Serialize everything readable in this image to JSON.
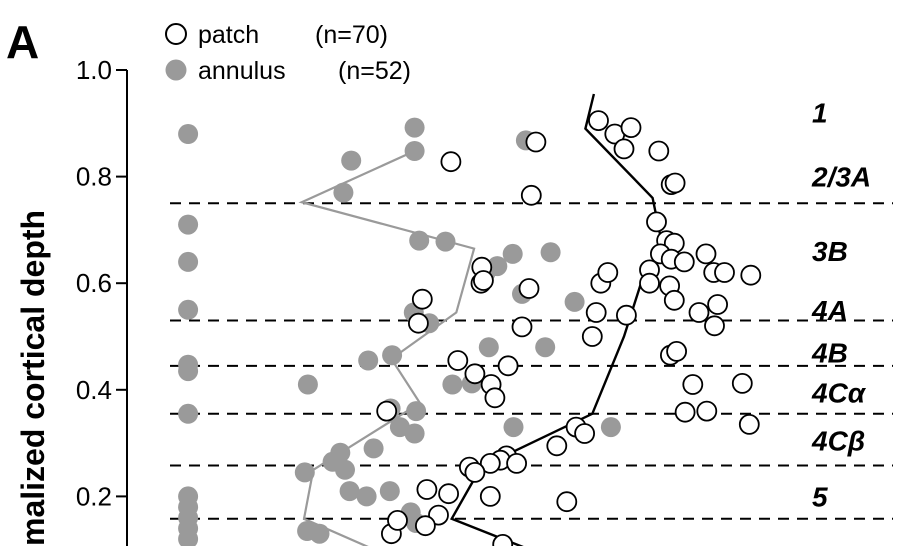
{
  "panel_label": "A",
  "legend": [
    {
      "label": "patch",
      "n": "(n=70)",
      "marker": "open-circle"
    },
    {
      "label": "annulus",
      "n": "(n=52)",
      "marker": "filled-circle"
    }
  ],
  "ylabel": "malized   cortical   depth",
  "colors": {
    "patch_stroke": "#000000",
    "annulus_fill": "#9a9a9a",
    "patch_curve": "#000000",
    "annulus_curve": "#9a9a9a",
    "boundary": "#000000"
  },
  "chart_data": {
    "type": "scatter",
    "ylim": [
      0.1,
      1.0
    ],
    "yticks": [
      {
        "value": 1.0,
        "label": "1.0"
      },
      {
        "value": 0.8,
        "label": "0.8"
      },
      {
        "value": 0.6,
        "label": "0.6"
      },
      {
        "value": 0.4,
        "label": "0.4"
      },
      {
        "value": 0.2,
        "label": "0.2"
      }
    ],
    "xaxis": "arbitrary horizontal spread (no labeled axis)",
    "xlim": [
      0,
      100
    ],
    "layer_boundaries": [
      0.75,
      0.53,
      0.445,
      0.355,
      0.258,
      0.158
    ],
    "layers": [
      {
        "label": "1",
        "y": 0.92
      },
      {
        "label": "2/3A",
        "y": 0.8
      },
      {
        "label": "3B",
        "y": 0.66
      },
      {
        "label": "4A",
        "y": 0.55
      },
      {
        "label": "4B",
        "y": 0.47
      },
      {
        "label": "4Cα",
        "y": 0.395
      },
      {
        "label": "4Cβ",
        "y": 0.305
      },
      {
        "label": "5",
        "y": 0.2
      }
    ],
    "series": [
      {
        "name": "patch",
        "marker": "open",
        "points": [
          [
            61.0,
            0.905
          ],
          [
            63.1,
            0.88
          ],
          [
            65.2,
            0.892
          ],
          [
            64.3,
            0.852
          ],
          [
            68.8,
            0.848
          ],
          [
            70.4,
            0.785
          ],
          [
            70.9,
            0.788
          ],
          [
            68.5,
            0.715
          ],
          [
            69.8,
            0.68
          ],
          [
            70.8,
            0.675
          ],
          [
            69.0,
            0.655
          ],
          [
            70.4,
            0.645
          ],
          [
            67.6,
            0.625
          ],
          [
            72.1,
            0.64
          ],
          [
            74.9,
            0.655
          ],
          [
            75.9,
            0.62
          ],
          [
            77.3,
            0.62
          ],
          [
            80.7,
            0.615
          ],
          [
            67.6,
            0.6
          ],
          [
            70.2,
            0.595
          ],
          [
            70.8,
            0.568
          ],
          [
            74.0,
            0.545
          ],
          [
            76.4,
            0.56
          ],
          [
            76.0,
            0.52
          ],
          [
            60.7,
            0.545
          ],
          [
            64.6,
            0.54
          ],
          [
            60.2,
            0.5
          ],
          [
            70.3,
            0.465
          ],
          [
            71.1,
            0.472
          ],
          [
            73.2,
            0.41
          ],
          [
            79.6,
            0.412
          ],
          [
            72.2,
            0.358
          ],
          [
            75.0,
            0.36
          ],
          [
            80.5,
            0.335
          ],
          [
            58.1,
            0.33
          ],
          [
            59.2,
            0.318
          ],
          [
            55.6,
            0.295
          ],
          [
            49.1,
            0.276
          ],
          [
            48.3,
            0.268
          ],
          [
            47.0,
            0.262
          ],
          [
            52.3,
            0.765
          ],
          [
            52.9,
            0.865
          ],
          [
            51.1,
            0.518
          ],
          [
            49.3,
            0.445
          ],
          [
            47.1,
            0.41
          ],
          [
            47.6,
            0.385
          ],
          [
            45.0,
            0.43
          ],
          [
            42.8,
            0.455
          ],
          [
            45.8,
            0.6
          ],
          [
            38.2,
            0.57
          ],
          [
            44.3,
            0.255
          ],
          [
            45.0,
            0.245
          ],
          [
            41.6,
            0.205
          ],
          [
            47.0,
            0.2
          ],
          [
            38.8,
            0.213
          ],
          [
            56.9,
            0.19
          ],
          [
            40.3,
            0.165
          ],
          [
            34.2,
            0.13
          ],
          [
            35.0,
            0.155
          ],
          [
            38.6,
            0.145
          ],
          [
            41.9,
            0.828
          ],
          [
            45.9,
            0.63
          ],
          [
            61.3,
            0.6
          ],
          [
            62.2,
            0.62
          ],
          [
            46.1,
            0.605
          ],
          [
            37.7,
            0.525
          ],
          [
            52.0,
            0.59
          ],
          [
            48.6,
            0.11
          ],
          [
            33.6,
            0.36
          ],
          [
            50.4,
            0.262
          ]
        ]
      },
      {
        "name": "annulus",
        "marker": "filled",
        "points": [
          [
            7.9,
            0.88
          ],
          [
            7.9,
            0.71
          ],
          [
            7.9,
            0.64
          ],
          [
            7.9,
            0.55
          ],
          [
            7.9,
            0.447
          ],
          [
            7.9,
            0.435
          ],
          [
            7.9,
            0.355
          ],
          [
            7.9,
            0.2
          ],
          [
            7.9,
            0.18
          ],
          [
            7.9,
            0.16
          ],
          [
            7.9,
            0.14
          ],
          [
            7.9,
            0.12
          ],
          [
            37.2,
            0.892
          ],
          [
            37.2,
            0.848
          ],
          [
            29.0,
            0.83
          ],
          [
            28.0,
            0.77
          ],
          [
            37.8,
            0.68
          ],
          [
            41.2,
            0.678
          ],
          [
            46.4,
            0.62
          ],
          [
            47.9,
            0.632
          ],
          [
            49.9,
            0.655
          ],
          [
            54.8,
            0.658
          ],
          [
            51.1,
            0.58
          ],
          [
            57.9,
            0.565
          ],
          [
            37.1,
            0.545
          ],
          [
            39.1,
            0.525
          ],
          [
            54.1,
            0.48
          ],
          [
            34.3,
            0.465
          ],
          [
            31.2,
            0.455
          ],
          [
            42.1,
            0.41
          ],
          [
            44.6,
            0.412
          ],
          [
            23.4,
            0.41
          ],
          [
            34.1,
            0.365
          ],
          [
            35.3,
            0.33
          ],
          [
            37.2,
            0.318
          ],
          [
            27.6,
            0.282
          ],
          [
            31.9,
            0.29
          ],
          [
            26.6,
            0.265
          ],
          [
            28.2,
            0.25
          ],
          [
            23.0,
            0.245
          ],
          [
            28.8,
            0.21
          ],
          [
            31.0,
            0.2
          ],
          [
            34.0,
            0.21
          ],
          [
            36.7,
            0.17
          ],
          [
            37.4,
            0.15
          ],
          [
            24.9,
            0.13
          ],
          [
            46.8,
            0.48
          ],
          [
            62.6,
            0.33
          ],
          [
            51.6,
            0.868
          ],
          [
            50.0,
            0.33
          ],
          [
            23.3,
            0.135
          ],
          [
            37.4,
            0.36
          ]
        ]
      }
    ],
    "curves": [
      {
        "series": "patch",
        "points": [
          [
            60.4,
            0.955
          ],
          [
            59.3,
            0.89
          ],
          [
            68.0,
            0.76
          ],
          [
            69.4,
            0.66
          ],
          [
            66.5,
            0.6
          ],
          [
            64.3,
            0.5
          ],
          [
            60.2,
            0.355
          ],
          [
            45.8,
            0.255
          ],
          [
            42.0,
            0.158
          ],
          [
            53.0,
            0.095
          ]
        ]
      },
      {
        "series": "annulus",
        "points": [
          [
            37.2,
            0.848
          ],
          [
            22.6,
            0.752
          ],
          [
            44.9,
            0.665
          ],
          [
            42.6,
            0.545
          ],
          [
            34.2,
            0.458
          ],
          [
            37.9,
            0.375
          ],
          [
            24.1,
            0.25
          ],
          [
            22.9,
            0.158
          ],
          [
            32.0,
            0.1
          ]
        ]
      }
    ]
  }
}
